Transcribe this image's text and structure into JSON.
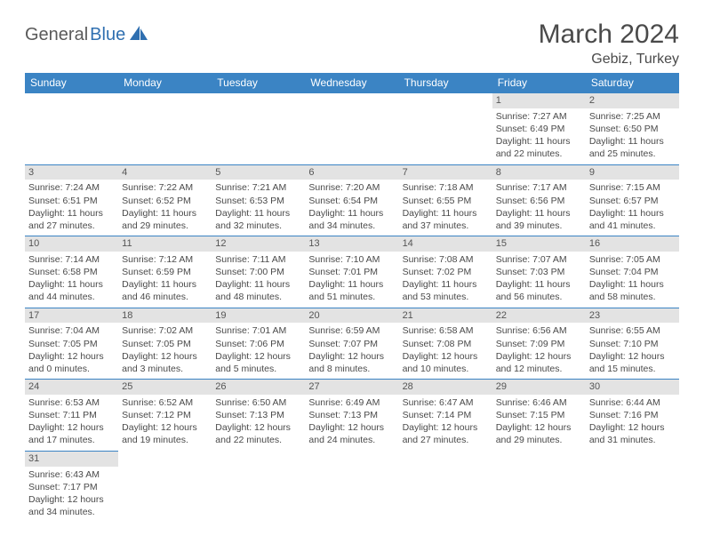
{
  "brand": {
    "word1": "General",
    "word2": "Blue",
    "word1_color": "#5a5a5a",
    "word2_color": "#2f6fb0",
    "sail_color": "#2f6fb0"
  },
  "title": {
    "month": "March 2024",
    "location": "Gebiz, Turkey",
    "text_color": "#4a4a4a"
  },
  "style": {
    "header_bg": "#3b84c4",
    "header_fg": "#ffffff",
    "band_bg": "#e3e3e3",
    "band_fg": "#555555",
    "cell_fg": "#4a4a4a",
    "divider": "#3b84c4",
    "page_bg": "#ffffff",
    "body_font_size": 10.5
  },
  "weekdays": [
    "Sunday",
    "Monday",
    "Tuesday",
    "Wednesday",
    "Thursday",
    "Friday",
    "Saturday"
  ],
  "leading_blanks": 5,
  "days": [
    {
      "n": 1,
      "rise": "Sunrise: 7:27 AM",
      "set": "Sunset: 6:49 PM",
      "d1": "Daylight: 11 hours",
      "d2": "and 22 minutes."
    },
    {
      "n": 2,
      "rise": "Sunrise: 7:25 AM",
      "set": "Sunset: 6:50 PM",
      "d1": "Daylight: 11 hours",
      "d2": "and 25 minutes."
    },
    {
      "n": 3,
      "rise": "Sunrise: 7:24 AM",
      "set": "Sunset: 6:51 PM",
      "d1": "Daylight: 11 hours",
      "d2": "and 27 minutes."
    },
    {
      "n": 4,
      "rise": "Sunrise: 7:22 AM",
      "set": "Sunset: 6:52 PM",
      "d1": "Daylight: 11 hours",
      "d2": "and 29 minutes."
    },
    {
      "n": 5,
      "rise": "Sunrise: 7:21 AM",
      "set": "Sunset: 6:53 PM",
      "d1": "Daylight: 11 hours",
      "d2": "and 32 minutes."
    },
    {
      "n": 6,
      "rise": "Sunrise: 7:20 AM",
      "set": "Sunset: 6:54 PM",
      "d1": "Daylight: 11 hours",
      "d2": "and 34 minutes."
    },
    {
      "n": 7,
      "rise": "Sunrise: 7:18 AM",
      "set": "Sunset: 6:55 PM",
      "d1": "Daylight: 11 hours",
      "d2": "and 37 minutes."
    },
    {
      "n": 8,
      "rise": "Sunrise: 7:17 AM",
      "set": "Sunset: 6:56 PM",
      "d1": "Daylight: 11 hours",
      "d2": "and 39 minutes."
    },
    {
      "n": 9,
      "rise": "Sunrise: 7:15 AM",
      "set": "Sunset: 6:57 PM",
      "d1": "Daylight: 11 hours",
      "d2": "and 41 minutes."
    },
    {
      "n": 10,
      "rise": "Sunrise: 7:14 AM",
      "set": "Sunset: 6:58 PM",
      "d1": "Daylight: 11 hours",
      "d2": "and 44 minutes."
    },
    {
      "n": 11,
      "rise": "Sunrise: 7:12 AM",
      "set": "Sunset: 6:59 PM",
      "d1": "Daylight: 11 hours",
      "d2": "and 46 minutes."
    },
    {
      "n": 12,
      "rise": "Sunrise: 7:11 AM",
      "set": "Sunset: 7:00 PM",
      "d1": "Daylight: 11 hours",
      "d2": "and 48 minutes."
    },
    {
      "n": 13,
      "rise": "Sunrise: 7:10 AM",
      "set": "Sunset: 7:01 PM",
      "d1": "Daylight: 11 hours",
      "d2": "and 51 minutes."
    },
    {
      "n": 14,
      "rise": "Sunrise: 7:08 AM",
      "set": "Sunset: 7:02 PM",
      "d1": "Daylight: 11 hours",
      "d2": "and 53 minutes."
    },
    {
      "n": 15,
      "rise": "Sunrise: 7:07 AM",
      "set": "Sunset: 7:03 PM",
      "d1": "Daylight: 11 hours",
      "d2": "and 56 minutes."
    },
    {
      "n": 16,
      "rise": "Sunrise: 7:05 AM",
      "set": "Sunset: 7:04 PM",
      "d1": "Daylight: 11 hours",
      "d2": "and 58 minutes."
    },
    {
      "n": 17,
      "rise": "Sunrise: 7:04 AM",
      "set": "Sunset: 7:05 PM",
      "d1": "Daylight: 12 hours",
      "d2": "and 0 minutes."
    },
    {
      "n": 18,
      "rise": "Sunrise: 7:02 AM",
      "set": "Sunset: 7:05 PM",
      "d1": "Daylight: 12 hours",
      "d2": "and 3 minutes."
    },
    {
      "n": 19,
      "rise": "Sunrise: 7:01 AM",
      "set": "Sunset: 7:06 PM",
      "d1": "Daylight: 12 hours",
      "d2": "and 5 minutes."
    },
    {
      "n": 20,
      "rise": "Sunrise: 6:59 AM",
      "set": "Sunset: 7:07 PM",
      "d1": "Daylight: 12 hours",
      "d2": "and 8 minutes."
    },
    {
      "n": 21,
      "rise": "Sunrise: 6:58 AM",
      "set": "Sunset: 7:08 PM",
      "d1": "Daylight: 12 hours",
      "d2": "and 10 minutes."
    },
    {
      "n": 22,
      "rise": "Sunrise: 6:56 AM",
      "set": "Sunset: 7:09 PM",
      "d1": "Daylight: 12 hours",
      "d2": "and 12 minutes."
    },
    {
      "n": 23,
      "rise": "Sunrise: 6:55 AM",
      "set": "Sunset: 7:10 PM",
      "d1": "Daylight: 12 hours",
      "d2": "and 15 minutes."
    },
    {
      "n": 24,
      "rise": "Sunrise: 6:53 AM",
      "set": "Sunset: 7:11 PM",
      "d1": "Daylight: 12 hours",
      "d2": "and 17 minutes."
    },
    {
      "n": 25,
      "rise": "Sunrise: 6:52 AM",
      "set": "Sunset: 7:12 PM",
      "d1": "Daylight: 12 hours",
      "d2": "and 19 minutes."
    },
    {
      "n": 26,
      "rise": "Sunrise: 6:50 AM",
      "set": "Sunset: 7:13 PM",
      "d1": "Daylight: 12 hours",
      "d2": "and 22 minutes."
    },
    {
      "n": 27,
      "rise": "Sunrise: 6:49 AM",
      "set": "Sunset: 7:13 PM",
      "d1": "Daylight: 12 hours",
      "d2": "and 24 minutes."
    },
    {
      "n": 28,
      "rise": "Sunrise: 6:47 AM",
      "set": "Sunset: 7:14 PM",
      "d1": "Daylight: 12 hours",
      "d2": "and 27 minutes."
    },
    {
      "n": 29,
      "rise": "Sunrise: 6:46 AM",
      "set": "Sunset: 7:15 PM",
      "d1": "Daylight: 12 hours",
      "d2": "and 29 minutes."
    },
    {
      "n": 30,
      "rise": "Sunrise: 6:44 AM",
      "set": "Sunset: 7:16 PM",
      "d1": "Daylight: 12 hours",
      "d2": "and 31 minutes."
    },
    {
      "n": 31,
      "rise": "Sunrise: 6:43 AM",
      "set": "Sunset: 7:17 PM",
      "d1": "Daylight: 12 hours",
      "d2": "and 34 minutes."
    }
  ]
}
